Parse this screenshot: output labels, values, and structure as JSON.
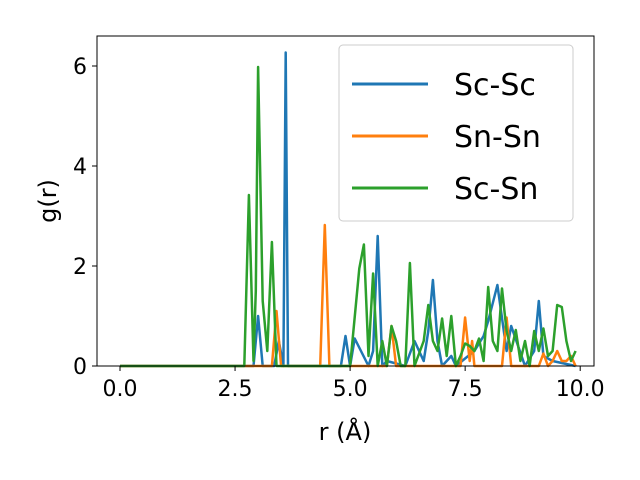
{
  "chart_data": {
    "type": "line",
    "title": "",
    "xlabel": "r (Å)",
    "ylabel": "g(r)",
    "xlim": [
      -0.5,
      10.3
    ],
    "ylim": [
      0,
      6.6
    ],
    "xticks": [
      0.0,
      2.5,
      5.0,
      7.5,
      10.0
    ],
    "xtick_labels": [
      "0.0",
      "2.5",
      "5.0",
      "7.5",
      "10.0"
    ],
    "yticks": [
      0,
      2,
      4,
      6
    ],
    "ytick_labels": [
      "0",
      "2",
      "4",
      "6"
    ],
    "grid": false,
    "legend": {
      "position": "top-right"
    },
    "series": [
      {
        "name": "Sc-Sc",
        "color": "#1f77b4",
        "x": [
          0.0,
          2.9,
          3.0,
          3.1,
          3.3,
          3.35,
          3.45,
          3.55,
          3.6,
          3.65,
          4.8,
          4.9,
          5.0,
          5.1,
          5.4,
          5.5,
          5.6,
          5.7,
          5.8,
          6.2,
          6.4,
          6.6,
          6.7,
          6.8,
          6.9,
          7.0,
          7.2,
          7.3,
          7.5,
          7.7,
          7.9,
          8.0,
          8.2,
          8.4,
          8.5,
          8.8,
          9.0,
          9.1,
          9.2,
          9.4,
          9.9
        ],
        "y": [
          0,
          0,
          1.0,
          0,
          0,
          0,
          0.5,
          0,
          6.27,
          0,
          0,
          0.6,
          0,
          0.55,
          0,
          0.3,
          2.6,
          0,
          0.1,
          0,
          0.5,
          0.1,
          0.7,
          1.72,
          0.5,
          0,
          0.2,
          0,
          0.15,
          0.3,
          0.6,
          0.9,
          1.62,
          0.3,
          0.8,
          0,
          0.3,
          1.3,
          0.2,
          0.1,
          0
        ]
      },
      {
        "name": "Sn-Sn",
        "color": "#ff7f0e",
        "x": [
          0.0,
          3.3,
          3.4,
          3.5,
          4.35,
          4.45,
          4.55,
          5.8,
          5.9,
          6.0,
          7.4,
          7.5,
          7.6,
          7.65,
          7.7,
          8.3,
          8.4,
          8.5,
          9.1,
          9.2,
          9.3,
          9.4,
          9.5,
          9.6,
          9.7,
          9.8,
          9.9
        ],
        "y": [
          0,
          0,
          1.1,
          0,
          0,
          2.82,
          0,
          0,
          0.8,
          0,
          0,
          0.97,
          0.1,
          0.5,
          0,
          0,
          0.97,
          0,
          0,
          0.25,
          0,
          0.1,
          0.3,
          0.1,
          0.1,
          0.2,
          0
        ]
      },
      {
        "name": "Sc-Sn",
        "color": "#2ca02c",
        "x": [
          0.0,
          2.7,
          2.8,
          2.9,
          2.95,
          3.0,
          3.1,
          3.2,
          3.3,
          3.4,
          5.0,
          5.2,
          5.3,
          5.4,
          5.5,
          5.6,
          5.7,
          5.8,
          5.9,
          6.0,
          6.1,
          6.2,
          6.3,
          6.4,
          6.6,
          6.7,
          6.8,
          6.9,
          7.0,
          7.1,
          7.2,
          7.3,
          7.4,
          7.5,
          7.6,
          7.7,
          7.8,
          7.9,
          8.0,
          8.1,
          8.2,
          8.3,
          8.4,
          8.5,
          8.6,
          8.7,
          8.8,
          8.9,
          9.0,
          9.1,
          9.2,
          9.3,
          9.4,
          9.5,
          9.6,
          9.7,
          9.8,
          9.9
        ],
        "y": [
          0,
          0,
          3.42,
          0.1,
          1.5,
          5.98,
          1.3,
          0.3,
          2.48,
          0,
          0,
          1.95,
          2.43,
          0.2,
          1.85,
          0,
          0.5,
          0,
          0.8,
          0.5,
          0,
          0,
          2.06,
          0,
          0.5,
          1.22,
          0.5,
          0.3,
          0.95,
          0.2,
          1.0,
          0,
          0.2,
          0.45,
          0.4,
          0.3,
          0.55,
          0.1,
          1.58,
          0.5,
          0.3,
          1.55,
          0.7,
          0.3,
          0.72,
          0.1,
          0.5,
          0,
          0.7,
          0.3,
          0.75,
          0.2,
          0.3,
          1.22,
          1.18,
          0.5,
          0.1,
          0.3
        ]
      }
    ]
  }
}
